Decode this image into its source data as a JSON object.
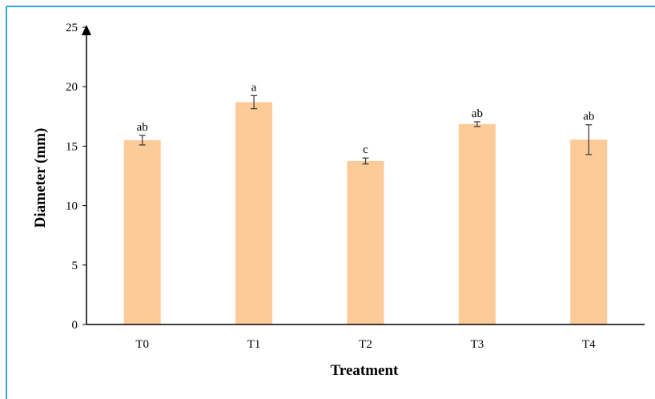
{
  "colors": {
    "border": "#29a9e0",
    "bar": "#fdcb97",
    "axis": "#000000",
    "error_bar": "#404040"
  },
  "chart_data": {
    "type": "bar",
    "categories": [
      "T0",
      "T1",
      "T2",
      "T3",
      "T4"
    ],
    "values": [
      15.5,
      18.7,
      13.75,
      16.85,
      15.55
    ],
    "errors": [
      0.4,
      0.55,
      0.25,
      0.2,
      1.25
    ],
    "significance_labels": [
      "ab",
      "a",
      "c",
      "ab",
      "ab"
    ],
    "xlabel": "Treatment",
    "ylabel": "Diameter (mm)",
    "ylim": [
      0,
      25
    ],
    "yticks": [
      0,
      5,
      10,
      15,
      20,
      25
    ],
    "grid": false,
    "legend": "none"
  }
}
